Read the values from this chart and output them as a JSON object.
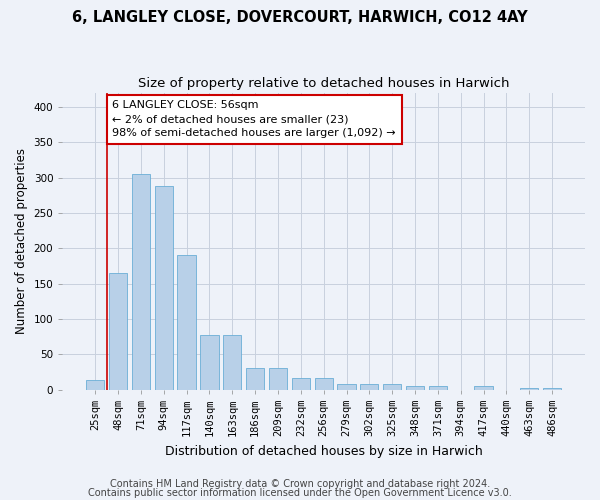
{
  "title1": "6, LANGLEY CLOSE, DOVERCOURT, HARWICH, CO12 4AY",
  "title2": "Size of property relative to detached houses in Harwich",
  "xlabel": "Distribution of detached houses by size in Harwich",
  "ylabel": "Number of detached properties",
  "bar_color": "#b8d0e8",
  "bar_edge_color": "#6aaed6",
  "categories": [
    "25sqm",
    "48sqm",
    "71sqm",
    "94sqm",
    "117sqm",
    "140sqm",
    "163sqm",
    "186sqm",
    "209sqm",
    "232sqm",
    "256sqm",
    "279sqm",
    "302sqm",
    "325sqm",
    "348sqm",
    "371sqm",
    "394sqm",
    "417sqm",
    "440sqm",
    "463sqm",
    "486sqm"
  ],
  "values": [
    13,
    165,
    305,
    288,
    190,
    77,
    77,
    30,
    30,
    16,
    16,
    8,
    8,
    8,
    5,
    5,
    0,
    5,
    0,
    3,
    3
  ],
  "ylim": [
    0,
    420
  ],
  "yticks": [
    0,
    50,
    100,
    150,
    200,
    250,
    300,
    350,
    400
  ],
  "annotation_box_text": "6 LANGLEY CLOSE: 56sqm\n← 2% of detached houses are smaller (23)\n98% of semi-detached houses are larger (1,092) →",
  "footer1": "Contains HM Land Registry data © Crown copyright and database right 2024.",
  "footer2": "Contains public sector information licensed under the Open Government Licence v3.0.",
  "background_color": "#eef2f9",
  "grid_color": "#c8d0de",
  "annotation_box_color": "#ffffff",
  "annotation_box_edge_color": "#cc0000",
  "red_line_color": "#cc0000",
  "title_fontsize": 10.5,
  "subtitle_fontsize": 9.5,
  "xlabel_fontsize": 9,
  "ylabel_fontsize": 8.5,
  "tick_fontsize": 7.5,
  "annotation_fontsize": 8,
  "footer_fontsize": 7
}
